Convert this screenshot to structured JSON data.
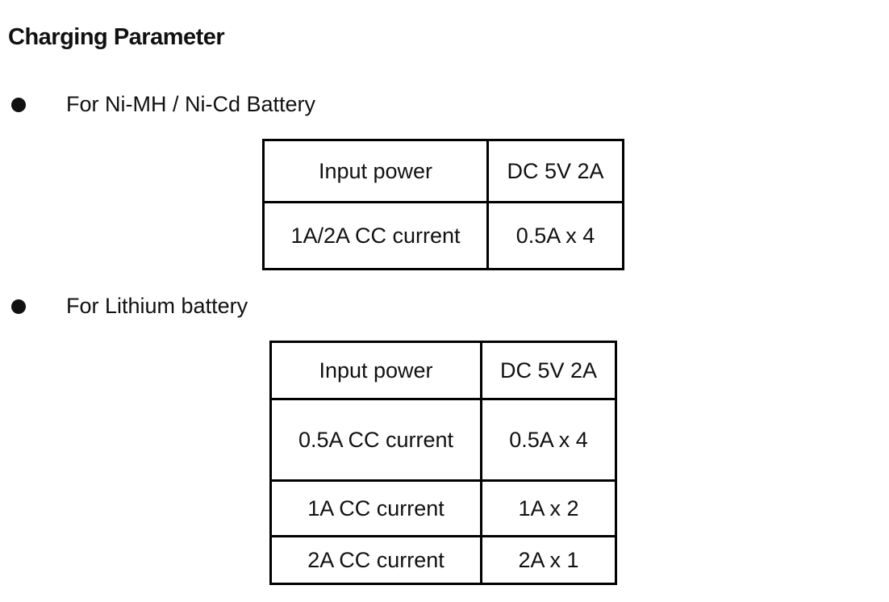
{
  "title": "Charging Parameter",
  "sections": [
    {
      "label": "For Ni-MH / Ni-Cd Battery",
      "rows": [
        [
          "Input power",
          "DC 5V 2A"
        ],
        [
          "1A/2A CC current",
          "0.5A x 4"
        ]
      ]
    },
    {
      "label": "For Lithium battery",
      "rows": [
        [
          "Input power",
          "DC 5V 2A"
        ],
        [
          "0.5A CC current",
          "0.5A x 4"
        ],
        [
          "1A CC current",
          "1A x 2"
        ],
        [
          "2A CC current",
          "2A x 1"
        ]
      ]
    }
  ]
}
